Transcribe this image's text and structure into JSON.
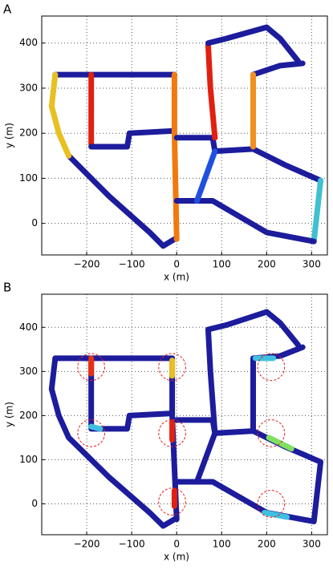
{
  "chart_data": [
    {
      "type": "line",
      "panel_label": "A",
      "xlabel": "x (m)",
      "ylabel": "y (m)",
      "xlim": [
        -300,
        335
      ],
      "ylim": [
        -70,
        460
      ],
      "grid": true,
      "xticks": [
        {
          "value": -200,
          "label": "−200"
        },
        {
          "value": -100,
          "label": "−100"
        },
        0,
        100,
        200,
        300
      ],
      "yticks": [
        0,
        100,
        200,
        300,
        400
      ],
      "series": [
        {
          "color": "#1c1c9c",
          "x": [
            -270,
            -5
          ],
          "values": [
            330,
            330
          ]
        },
        {
          "color": "#1c1c9c",
          "x": [
            -240,
            -150,
            -60,
            -30,
            -5
          ],
          "values": [
            150,
            60,
            -20,
            -50,
            -35
          ]
        },
        {
          "color": "#e8c020",
          "x": [
            -270,
            -278,
            -262,
            -240
          ],
          "values": [
            330,
            260,
            200,
            150
          ]
        },
        {
          "color": "#e02010",
          "x": [
            -190,
            -190
          ],
          "values": [
            330,
            175
          ]
        },
        {
          "color": "#1c1c9c",
          "x": [
            -190,
            -110,
            -105,
            -10
          ],
          "values": [
            170,
            170,
            200,
            205
          ]
        },
        {
          "color": "#f07a10",
          "x": [
            -5,
            -5,
            0
          ],
          "values": [
            330,
            200,
            -35
          ]
        },
        {
          "color": "#1c1c9c",
          "x": [
            0,
            80,
            85,
            170
          ],
          "values": [
            190,
            190,
            160,
            165
          ]
        },
        {
          "color": "#1c1c9c",
          "x": [
            170,
            240,
            320
          ],
          "values": [
            165,
            130,
            95
          ]
        },
        {
          "color": "#40c0d0",
          "x": [
            320,
            305
          ],
          "values": [
            95,
            -40
          ]
        },
        {
          "color": "#1c1c9c",
          "x": [
            305,
            200,
            80,
            0
          ],
          "values": [
            -40,
            -20,
            50,
            50
          ]
        },
        {
          "color": "#2050e0",
          "x": [
            45,
            85
          ],
          "values": [
            50,
            160
          ]
        },
        {
          "color": "#e02010",
          "x": [
            85,
            75,
            70
          ],
          "values": [
            190,
            300,
            395
          ]
        },
        {
          "color": "#1c1c9c",
          "x": [
            70,
            110,
            200,
            230,
            270
          ],
          "values": [
            400,
            410,
            435,
            410,
            360
          ]
        },
        {
          "color": "#1c1c9c",
          "x": [
            280,
            230,
            170
          ],
          "values": [
            355,
            350,
            330
          ]
        },
        {
          "color": "#f09020",
          "x": [
            170,
            170
          ],
          "values": [
            330,
            170
          ]
        }
      ]
    },
    {
      "type": "line",
      "panel_label": "B",
      "xlabel": "x (m)",
      "ylabel": "y (m)",
      "xlim": [
        -300,
        335
      ],
      "ylim": [
        -70,
        475
      ],
      "grid": true,
      "xticks": [
        {
          "value": -200,
          "label": "−200"
        },
        {
          "value": -100,
          "label": "−100"
        },
        0,
        100,
        200,
        300
      ],
      "yticks": [
        0,
        100,
        200,
        300,
        400
      ],
      "series": [
        {
          "color": "#1c1c9c",
          "x": [
            -270,
            -10
          ],
          "values": [
            330,
            330
          ]
        },
        {
          "color": "#1c1c9c",
          "x": [
            -270,
            -278,
            -262,
            -240,
            -150,
            -60,
            -30,
            -5
          ],
          "values": [
            330,
            260,
            200,
            150,
            60,
            -20,
            -50,
            -35
          ]
        },
        {
          "color": "#1c1c9c",
          "x": [
            -190,
            -190
          ],
          "values": [
            330,
            175
          ]
        },
        {
          "color": "#e83010",
          "x": [
            -190,
            -190
          ],
          "values": [
            330,
            295
          ]
        },
        {
          "color": "#1c1c9c",
          "x": [
            -190,
            -110,
            -105,
            -10
          ],
          "values": [
            170,
            170,
            200,
            205
          ]
        },
        {
          "color": "#40c0e0",
          "x": [
            -190,
            -170
          ],
          "values": [
            175,
            170
          ]
        },
        {
          "color": "#1c1c9c",
          "x": [
            -10,
            -10,
            0
          ],
          "values": [
            330,
            200,
            -35
          ]
        },
        {
          "color": "#e8c020",
          "x": [
            -10,
            -10
          ],
          "values": [
            325,
            290
          ]
        },
        {
          "color": "#e02010",
          "x": [
            -10,
            -10
          ],
          "values": [
            185,
            145
          ]
        },
        {
          "color": "#e02010",
          "x": [
            -5,
            -5
          ],
          "values": [
            30,
            -5
          ]
        },
        {
          "color": "#1c1c9c",
          "x": [
            0,
            80,
            85,
            170
          ],
          "values": [
            190,
            190,
            160,
            165
          ]
        },
        {
          "color": "#1c1c9c",
          "x": [
            170,
            240,
            320,
            305,
            200,
            80,
            0
          ],
          "values": [
            165,
            130,
            95,
            -40,
            -20,
            50,
            50
          ]
        },
        {
          "color": "#80e060",
          "x": [
            205,
            255
          ],
          "values": [
            150,
            125
          ]
        },
        {
          "color": "#40c0e0",
          "x": [
            195,
            245
          ],
          "values": [
            -20,
            -30
          ]
        },
        {
          "color": "#1c1c9c",
          "x": [
            45,
            85,
            75,
            70,
            110,
            200,
            230,
            270
          ],
          "values": [
            50,
            160,
            300,
            395,
            405,
            435,
            410,
            360
          ]
        },
        {
          "color": "#1c1c9c",
          "x": [
            280,
            230,
            170,
            170
          ],
          "values": [
            355,
            335,
            330,
            170
          ]
        },
        {
          "color": "#40c0e0",
          "x": [
            175,
            215
          ],
          "values": [
            330,
            330
          ]
        }
      ],
      "circles": {
        "color": "#e02020",
        "r": 30,
        "x": [
          -190,
          -190,
          -10,
          -10,
          -10,
          210,
          210,
          210
        ],
        "y": [
          310,
          160,
          310,
          160,
          5,
          310,
          160,
          0
        ]
      }
    }
  ]
}
